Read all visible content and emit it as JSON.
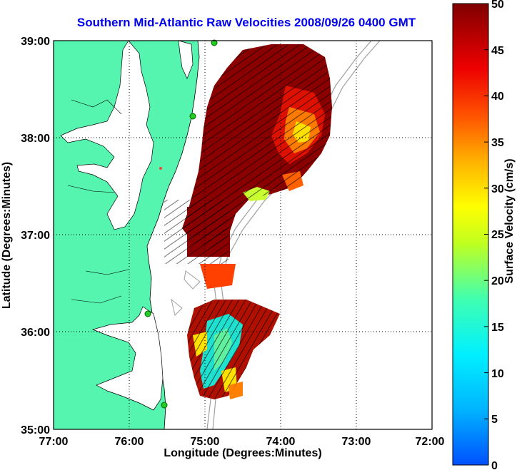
{
  "title": "Southern Mid-Atlantic Raw Velocities 2008/09/26 0400 GMT",
  "x_axis": {
    "label": "Longitude (Degrees:Minutes)",
    "ticks": [
      "77:00",
      "76:00",
      "75:00",
      "74:00",
      "73:00",
      "72:00"
    ]
  },
  "y_axis": {
    "label": "Latitude (Degrees:Minutes)",
    "ticks": [
      "39:00",
      "38:00",
      "37:00",
      "36:00",
      "35:00"
    ]
  },
  "colorbar": {
    "label": "Surface Velocity (cm/s)",
    "ticks": [
      "50",
      "45",
      "40",
      "35",
      "30",
      "25",
      "20",
      "15",
      "10",
      "5",
      "0"
    ],
    "range": [
      0,
      50
    ]
  },
  "colors": {
    "land": "#55f5b0",
    "water": "#ffffff",
    "title": "#0000ee",
    "station": "#22cc22",
    "bathymetry": "#a0a0a0"
  },
  "stations": [
    "station-north",
    "station-delmarva",
    "station-chesapeake-mouth",
    "station-outer-banks-north",
    "station-hatteras"
  ]
}
